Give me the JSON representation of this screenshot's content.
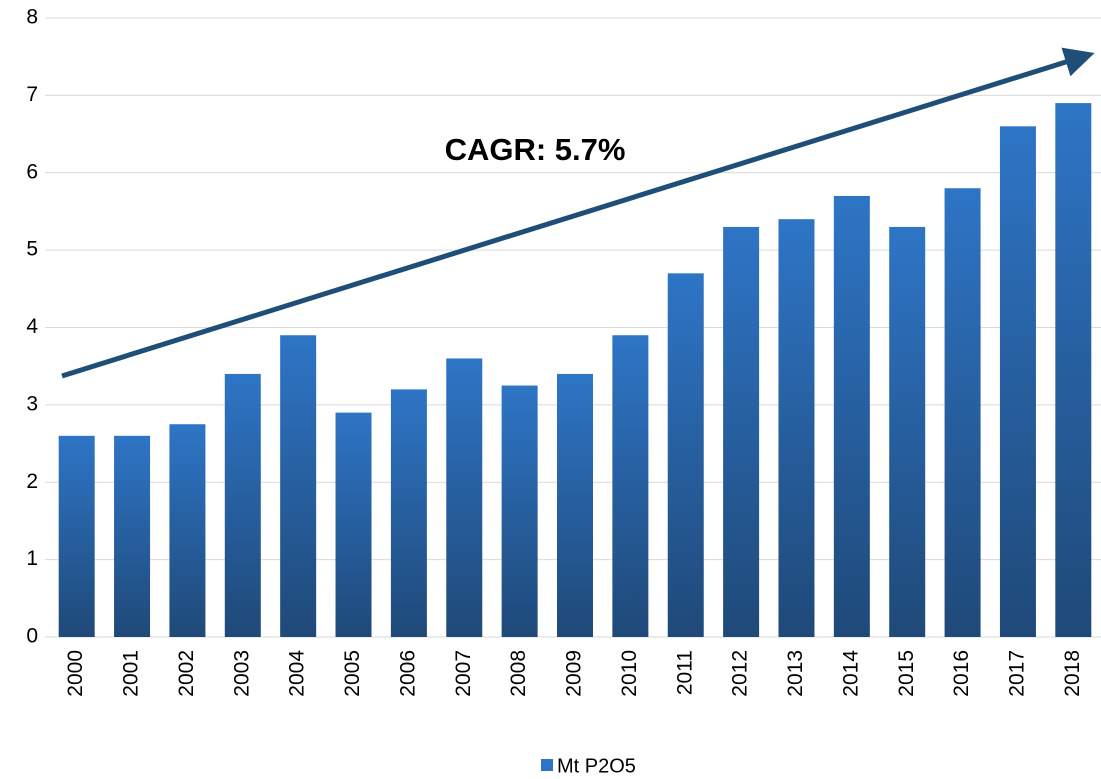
{
  "chart_data": {
    "type": "bar",
    "annotation": "CAGR: 5.7%",
    "categories": [
      "2000",
      "2001",
      "2002",
      "2003",
      "2004",
      "2005",
      "2006",
      "2007",
      "2008",
      "2009",
      "2010",
      "2011",
      "2012",
      "2013",
      "2014",
      "2015",
      "2016",
      "2017",
      "2018"
    ],
    "series": [
      {
        "name": "Mt P2O5",
        "color": "#2e75c6",
        "values": [
          2.6,
          2.6,
          2.75,
          3.4,
          3.9,
          2.9,
          3.2,
          3.6,
          3.25,
          3.4,
          3.9,
          4.7,
          5.3,
          5.4,
          5.7,
          5.3,
          5.8,
          6.6,
          6.9
        ]
      }
    ],
    "ylim": [
      0,
      8
    ],
    "yticks": [
      0,
      1,
      2,
      3,
      4,
      5,
      6,
      7,
      8
    ],
    "grid": true,
    "legend": "bottom"
  }
}
